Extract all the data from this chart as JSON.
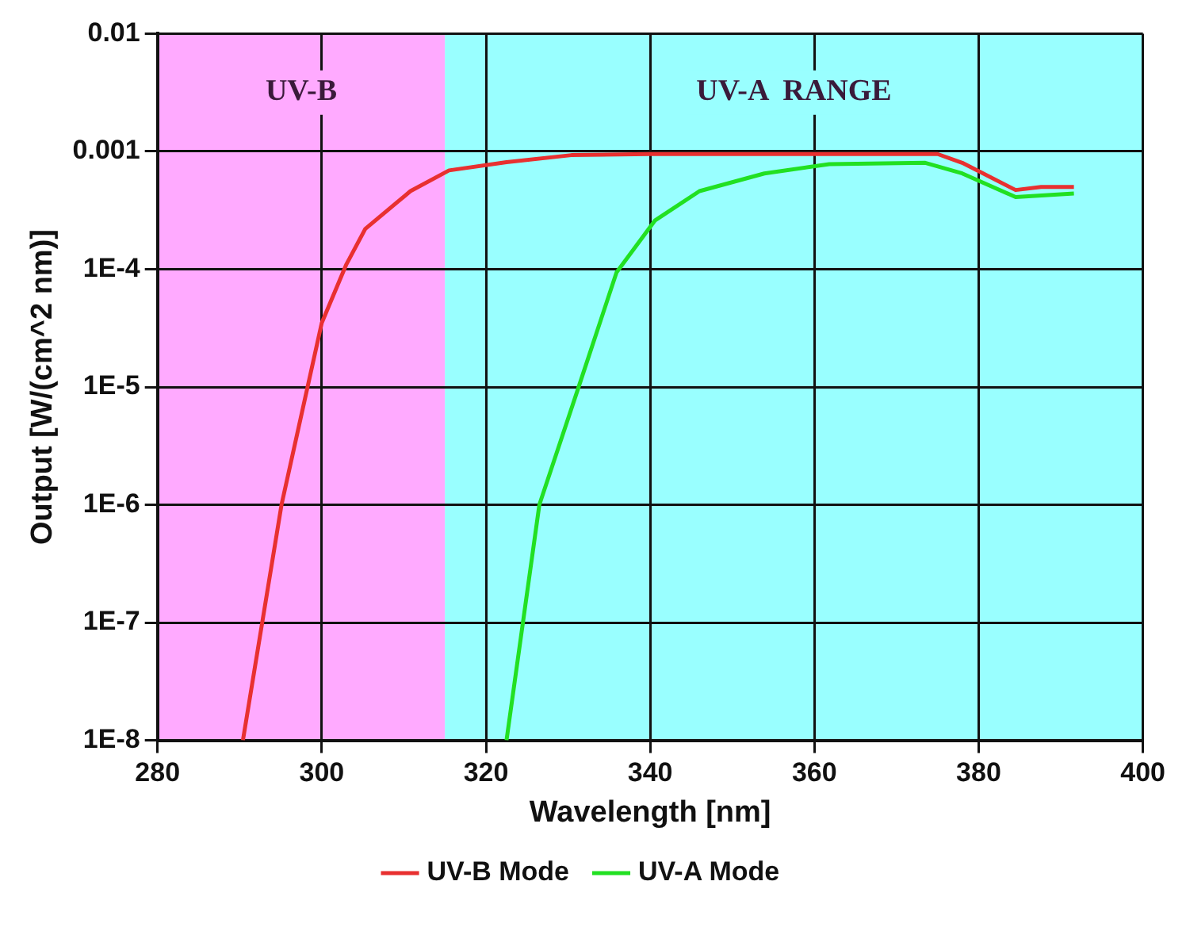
{
  "chart_data": {
    "type": "line",
    "xlabel": "Wavelength [nm]",
    "ylabel": "Output [W/(cm^2 nm)]",
    "xlim": [
      280,
      400
    ],
    "xticks": [
      280,
      300,
      320,
      340,
      360,
      380,
      400
    ],
    "ylim": [
      1e-08,
      0.01
    ],
    "yticks": [
      {
        "value": 1e-08,
        "label": "1E-8"
      },
      {
        "value": 1e-07,
        "label": "1E-7"
      },
      {
        "value": 1e-06,
        "label": "1E-6"
      },
      {
        "value": 1e-05,
        "label": "1E-5"
      },
      {
        "value": 0.0001,
        "label": "1E-4"
      },
      0.001,
      0.01
    ],
    "log": "y",
    "grid": true,
    "legend": "bottom",
    "marker": "none",
    "line_style": "solid",
    "bands": [
      {
        "axis": "x",
        "from": 280,
        "to": 315,
        "label": "UV-B",
        "color": "#ffaaff"
      },
      {
        "axis": "x",
        "from": 315,
        "to": 400,
        "label": "UV-A  RANGE",
        "color": "#99ffff"
      }
    ],
    "series": [
      {
        "name": "UV-B Mode",
        "color": "#e83030",
        "x": [
          290.4,
          295.1,
          300,
          303,
          305.3,
          310.8,
          315.5,
          322.5,
          330.4,
          340,
          350,
          360,
          375,
          378,
          384.5,
          387.6,
          391.6
        ],
        "values": [
          1e-08,
          1e-06,
          3.5e-05,
          0.00011,
          0.00022,
          0.00046,
          0.00069,
          0.00081,
          0.00093,
          0.00095,
          0.00095,
          0.00095,
          0.00095,
          0.0008,
          0.00047,
          0.0005,
          0.0005
        ]
      },
      {
        "name": "UV-A Mode",
        "color": "#22e022",
        "x": [
          322.5,
          326.5,
          331.2,
          335.9,
          340.6,
          346,
          353.9,
          361.8,
          373.5,
          378,
          384.5,
          391.6
        ],
        "values": [
          1e-08,
          1e-06,
          9.6e-06,
          9.4e-05,
          0.00026,
          0.00046,
          0.00065,
          0.00078,
          0.0008,
          0.00065,
          0.00041,
          0.00044
        ]
      }
    ]
  }
}
